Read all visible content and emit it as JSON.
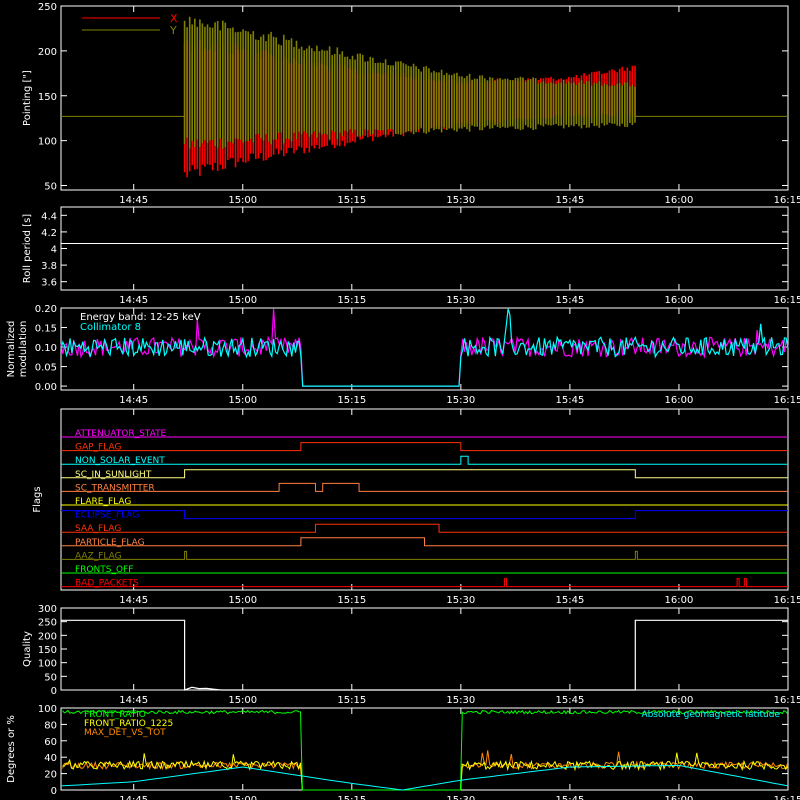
{
  "time_ticks": [
    "14:45",
    "15:00",
    "15:15",
    "15:30",
    "15:45",
    "16:00",
    "16:15"
  ],
  "chart_data": [
    {
      "type": "line",
      "id": "pointing",
      "ylabel": "Pointing [\"]",
      "ylim": [
        45,
        250
      ],
      "yticks": [
        50,
        100,
        150,
        200,
        250
      ],
      "legend": [
        {
          "name": "X",
          "color": "#ff0000"
        },
        {
          "name": "Y",
          "color": "#808000"
        }
      ],
      "baseline_value": 127,
      "data_window": [
        "14:52",
        "15:54"
      ],
      "series": [
        {
          "name": "X",
          "color": "#ff0000",
          "envelope_time": [
            "14:52",
            "15:00",
            "15:15",
            "15:30",
            "15:45",
            "15:54"
          ],
          "low": [
            62,
            78,
            100,
            118,
            128,
            128
          ],
          "high": [
            210,
            200,
            178,
            165,
            170,
            182
          ]
        },
        {
          "name": "Y",
          "color": "#808000",
          "envelope_time": [
            "14:52",
            "15:00",
            "15:15",
            "15:30",
            "15:45",
            "15:54"
          ],
          "low": [
            95,
            100,
            108,
            113,
            116,
            118
          ],
          "high": [
            235,
            222,
            195,
            172,
            165,
            162
          ]
        }
      ]
    },
    {
      "type": "line",
      "id": "roll",
      "ylabel": "Roll period [s]",
      "ylim": [
        3.5,
        4.5
      ],
      "yticks": [
        3.6,
        3.8,
        4.0,
        4.2,
        4.4
      ],
      "series": [
        {
          "name": "roll",
          "color": "#ffffff",
          "value": 4.06
        }
      ]
    },
    {
      "type": "line",
      "id": "modulation",
      "ylabel": "Normalized modulation",
      "ylim": [
        -0.01,
        0.2
      ],
      "yticks": [
        0.0,
        0.05,
        0.1,
        0.15,
        0.2
      ],
      "ytick_labels": [
        "0.00",
        "0.05",
        "0.10",
        "0.15",
        "0.20"
      ],
      "legend": [
        {
          "name": "Energy band: 12-25 keV",
          "color": "#ffffff"
        },
        {
          "name": "Collimator 8",
          "color": "#00ffff"
        }
      ],
      "gap": [
        "15:08",
        "15:30"
      ],
      "typical_level": 0.1,
      "series": [
        {
          "name": "Collimator 8",
          "color": "#00ffff"
        },
        {
          "name": "",
          "color": "#ff00ff"
        }
      ]
    },
    {
      "type": "line",
      "id": "flags",
      "ylabel": "Flags",
      "flags": [
        {
          "name": "ATTENUATOR_STATE",
          "color": "#ff00ff",
          "high": []
        },
        {
          "name": "GAP_FLAG",
          "color": "#ff3300",
          "high": [
            [
              "15:08",
              "15:30"
            ]
          ]
        },
        {
          "name": "NON_SOLAR_EVENT",
          "color": "#00ffff",
          "high": [
            [
              "15:30",
              "15:31"
            ]
          ]
        },
        {
          "name": "SC_IN_SUNLIGHT",
          "color": "#ffff80",
          "high": [
            [
              "14:52",
              "15:54"
            ]
          ]
        },
        {
          "name": "SC_TRANSMITTER",
          "color": "#ff8040",
          "high": [
            [
              "15:05",
              "15:10"
            ],
            [
              "15:11",
              "15:16"
            ]
          ]
        },
        {
          "name": "FLARE_FLAG",
          "color": "#ffff00",
          "high": []
        },
        {
          "name": "ECLIPSE_FLAG",
          "color": "#0000ff",
          "low": [
            [
              "14:52",
              "15:54"
            ]
          ],
          "high": []
        },
        {
          "name": "SAA_FLAG",
          "color": "#ff3300",
          "high": [
            [
              "15:10",
              "15:27"
            ]
          ]
        },
        {
          "name": "PARTICLE_FLAG",
          "color": "#ff8040",
          "high": [
            [
              "15:08",
              "15:25"
            ]
          ]
        },
        {
          "name": "AAZ_FLAG",
          "color": "#808000",
          "high": [
            [
              "14:52",
              "14:52"
            ],
            [
              "15:54",
              "15:54"
            ]
          ]
        },
        {
          "name": "FRONTS_OFF",
          "color": "#00ff00",
          "high": []
        },
        {
          "name": "BAD_PACKETS",
          "color": "#ff0000",
          "high": [
            [
              "15:36",
              "15:36"
            ],
            [
              "16:08",
              "16:08"
            ],
            [
              "16:09",
              "16:09"
            ]
          ]
        }
      ]
    },
    {
      "type": "line",
      "id": "quality",
      "ylabel": "Quality",
      "ylim": [
        0,
        300
      ],
      "yticks": [
        0,
        50,
        100,
        150,
        200,
        250,
        300
      ],
      "series": [
        {
          "name": "quality",
          "color": "#ffffff",
          "time": [
            "14:35",
            "14:52",
            "14:52",
            "14:53",
            "14:54",
            "14:55",
            "14:56",
            "14:57",
            "15:54",
            "15:54",
            "16:15"
          ],
          "values": [
            255,
            255,
            0,
            10,
            5,
            6,
            3,
            0,
            0,
            255,
            255
          ]
        }
      ]
    },
    {
      "type": "line",
      "id": "degrees",
      "ylabel": "Degrees or %",
      "ylim": [
        0,
        100
      ],
      "yticks": [
        0,
        20,
        40,
        60,
        80,
        100
      ],
      "legend": [
        {
          "name": "FRONT_RATIO",
          "color": "#00ff00"
        },
        {
          "name": "FRONT_RATIO_1225",
          "color": "#ffff00"
        },
        {
          "name": "MAX_DET_VS_TOT",
          "color": "#ff8800"
        }
      ],
      "annotation": "Absolute geomagnetic latitude",
      "annotation_color": "#00ffff",
      "gap": [
        "15:08",
        "15:30"
      ],
      "series": [
        {
          "name": "FRONT_RATIO",
          "color": "#00ff00",
          "typical_level": 95
        },
        {
          "name": "FRONT_RATIO_1225",
          "color": "#ffff00",
          "typical_level": 30
        },
        {
          "name": "MAX_DET_VS_TOT",
          "color": "#ff8800",
          "typical_level": 30
        },
        {
          "name": "Absolute geomagnetic latitude",
          "color": "#00ffff",
          "time": [
            "14:35",
            "14:45",
            "15:00",
            "15:15",
            "15:22",
            "15:30",
            "15:45",
            "16:00",
            "16:15"
          ],
          "values": [
            5,
            10,
            28,
            8,
            0,
            12,
            28,
            30,
            5
          ]
        }
      ]
    }
  ]
}
